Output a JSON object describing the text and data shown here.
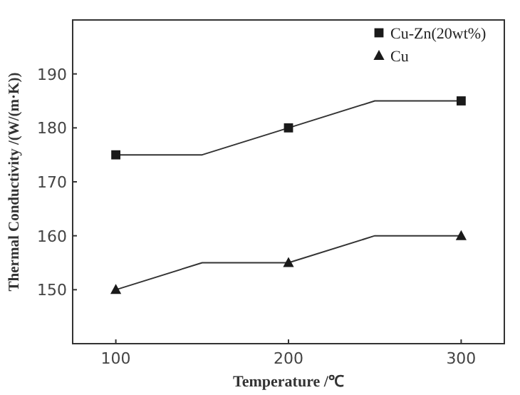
{
  "chart_data": {
    "type": "line",
    "xlabel": "Temperature /℃",
    "ylabel": "Thermal Conductivity /(W/(m·K))",
    "xlim": [
      75,
      325
    ],
    "xticks": [
      100,
      200,
      300
    ],
    "ylim": [
      140,
      200
    ],
    "yticks": [
      150,
      160,
      170,
      180,
      190
    ],
    "grid": false,
    "legend": "top right",
    "series": [
      {
        "color": "#333333",
        "marker": "none",
        "x": [
          100,
          150,
          200,
          250,
          300
        ],
        "values": [
          175,
          175,
          180,
          185,
          185
        ]
      },
      {
        "color": "#333333",
        "marker": "none",
        "x": [
          100,
          150,
          200,
          250,
          300
        ],
        "values": [
          150,
          155,
          155,
          160,
          160
        ]
      },
      {
        "type": "scatter",
        "name": "Cu-Zn(20wt%)",
        "color": "#1a1a1a",
        "marker": "square",
        "x": [
          100,
          200,
          300
        ],
        "values": [
          175,
          180,
          185
        ]
      },
      {
        "type": "scatter",
        "name": "Cu",
        "color": "#1a1a1a",
        "marker": "triangle",
        "x": [
          100,
          200,
          300
        ],
        "values": [
          150,
          155,
          160
        ]
      }
    ]
  }
}
